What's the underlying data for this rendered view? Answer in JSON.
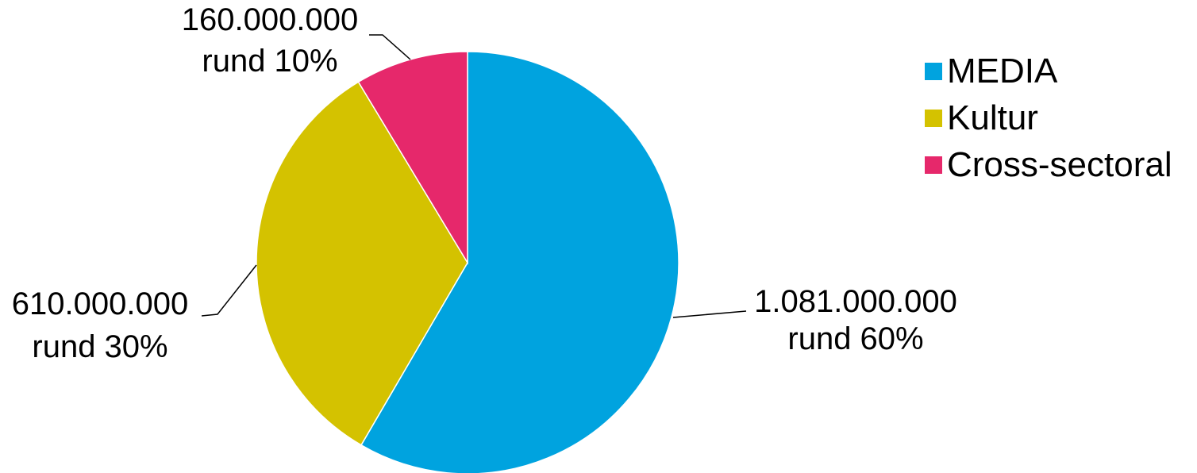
{
  "chart_data": {
    "type": "pie",
    "title": "",
    "categories": [
      "MEDIA",
      "Kultur",
      "Cross-sectoral"
    ],
    "values": [
      1081000000,
      610000000,
      160000000
    ],
    "value_labels": [
      "1.081.000.000",
      "610.000.000",
      "160.000.000"
    ],
    "percent_labels": [
      "rund 60%",
      "rund 30%",
      "rund 10%"
    ],
    "colors": [
      "#00A3DF",
      "#D4C200",
      "#E6286B"
    ],
    "legend_position": "right"
  }
}
